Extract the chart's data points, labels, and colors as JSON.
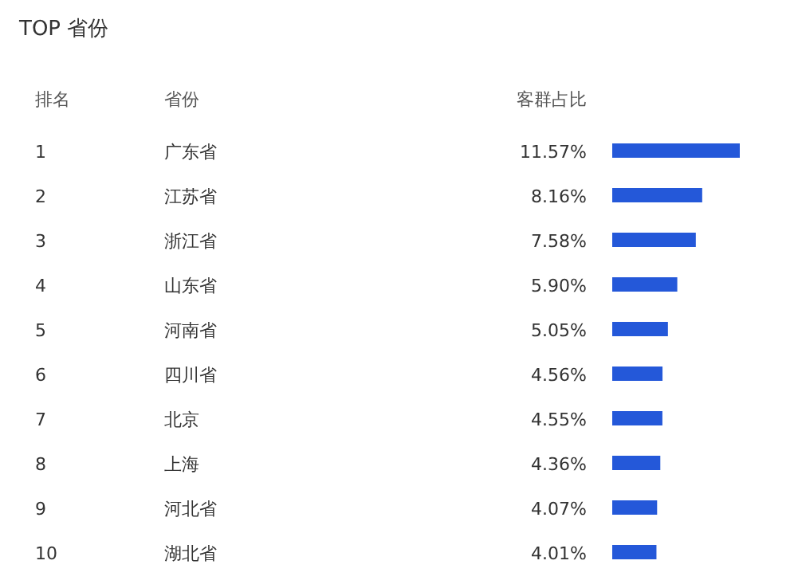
{
  "chart_data": {
    "type": "bar",
    "orientation": "horizontal",
    "title": "TOP 省份",
    "categories": [
      "广东省",
      "江苏省",
      "浙江省",
      "山东省",
      "河南省",
      "四川省",
      "北京",
      "上海",
      "河北省",
      "湖北省"
    ],
    "values": [
      11.57,
      8.16,
      7.58,
      5.9,
      5.05,
      4.56,
      4.55,
      4.36,
      4.07,
      4.01
    ],
    "value_labels": [
      "11.57%",
      "8.16%",
      "7.58%",
      "5.90%",
      "5.05%",
      "4.56%",
      "4.55%",
      "4.36%",
      "4.07%",
      "4.01%"
    ],
    "color": "#2458d9",
    "annotations": [
      "排名",
      "省份",
      "客群占比",
      "1",
      "2",
      "3",
      "4",
      "5",
      "6",
      "7",
      "8",
      "9",
      "10"
    ]
  }
}
